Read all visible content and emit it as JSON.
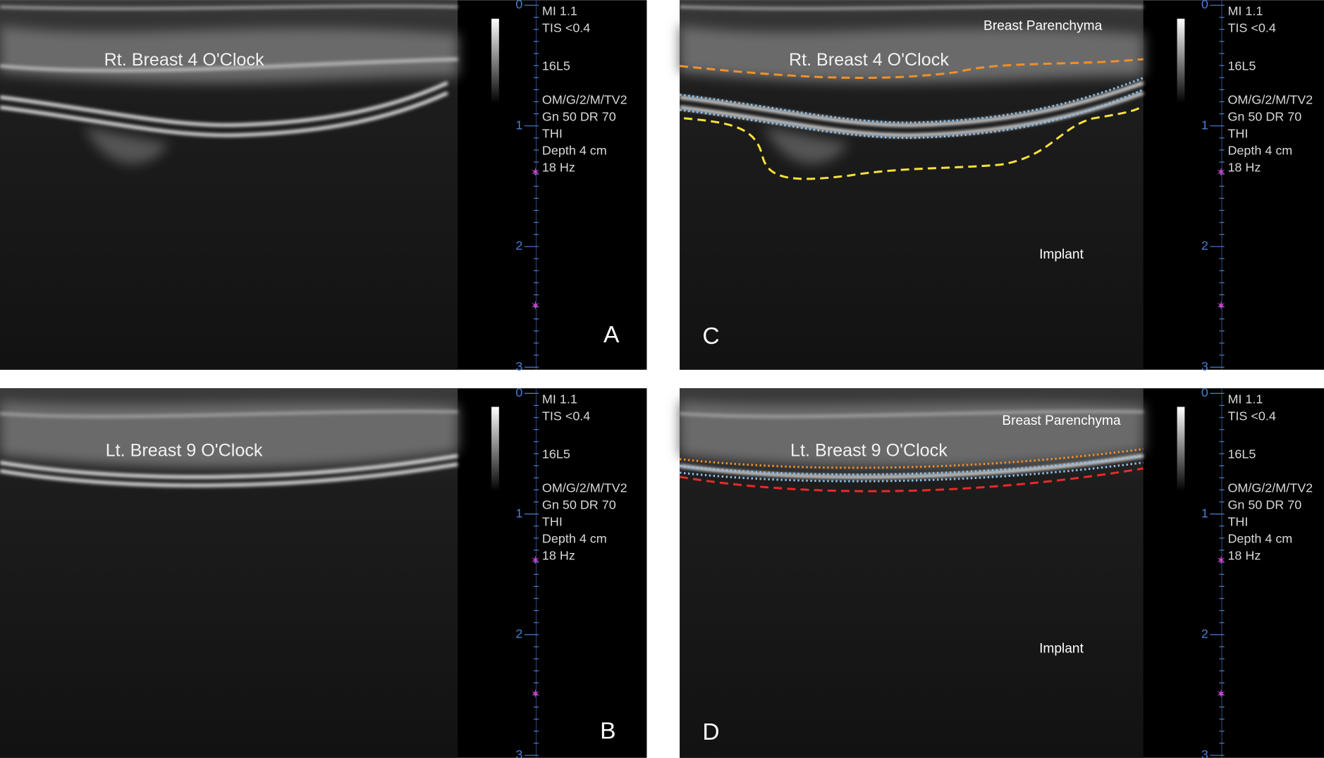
{
  "panels": [
    {
      "letter": "A",
      "title": "Rt. Breast 4 O'Clock",
      "depth_labels": [
        "0",
        "1",
        "2",
        "3"
      ],
      "info": [
        "MI  1.1",
        "TIS <0.4",
        "16L5",
        "OM/G/2/M/TV2",
        "Gn 50  DR 70",
        "THI",
        "Depth 4 cm",
        "18 Hz"
      ]
    },
    {
      "letter": "B",
      "title": "Lt. Breast 9 O'Clock",
      "depth_labels": [
        "0",
        "1",
        "2",
        "3"
      ],
      "info": [
        "MI  1.1",
        "TIS <0.4",
        "16L5",
        "OM/G/2/M/TV2",
        "Gn 50  DR 70",
        "THI",
        "Depth 4 cm",
        "18 Hz"
      ]
    },
    {
      "letter": "C",
      "title": "Rt. Breast 4 O'Clock",
      "depth_labels": [
        "0",
        "1",
        "2",
        "3"
      ],
      "info": [
        "MI  1.1",
        "TIS <0.4",
        "16L5",
        "OM/G/2/M/TV2",
        "Gn 50  DR 70",
        "THI",
        "Depth 4 cm",
        "18 Hz"
      ],
      "labels": [
        "Breast Parenchyma",
        "Implant"
      ]
    },
    {
      "letter": "D",
      "title": "Lt. Breast 9 O'Clock",
      "depth_labels": [
        "0",
        "1",
        "2",
        "3"
      ],
      "info": [
        "MI  1.1",
        "TIS <0.4",
        "16L5",
        "OM/G/2/M/TV2",
        "Gn 50  DR 70",
        "THI",
        "Depth 4 cm",
        "18 Hz"
      ],
      "labels": [
        "Breast Parenchyma",
        "Implant"
      ]
    }
  ]
}
